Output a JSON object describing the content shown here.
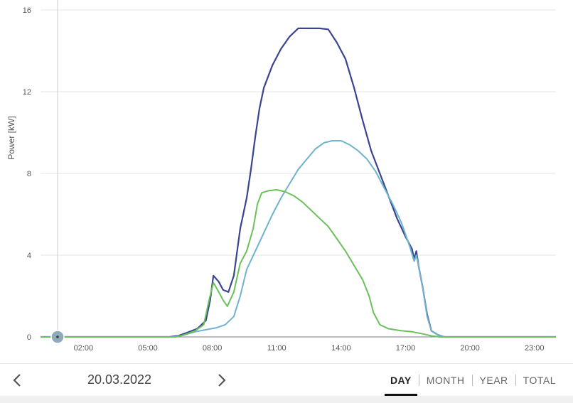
{
  "chart_data": {
    "type": "line",
    "title": "",
    "xlabel": "",
    "ylabel": "Power [kW]",
    "xlim": [
      0,
      24
    ],
    "ylim": [
      0,
      16
    ],
    "y_ticks": [
      0,
      4,
      8,
      12,
      16
    ],
    "x_ticks": [
      {
        "value": 2,
        "label": "02:00"
      },
      {
        "value": 5,
        "label": "05:00"
      },
      {
        "value": 8,
        "label": "08:00"
      },
      {
        "value": 11,
        "label": "11:00"
      },
      {
        "value": 14,
        "label": "14:00"
      },
      {
        "value": 17,
        "label": "17:00"
      },
      {
        "value": 20,
        "label": "20:00"
      },
      {
        "value": 23,
        "label": "23:00"
      }
    ],
    "grid": true,
    "cursor_x": 0,
    "series": [
      {
        "color": "#3a4590",
        "points": [
          [
            0,
            0
          ],
          [
            6.0,
            0
          ],
          [
            6.4,
            0.05
          ],
          [
            6.8,
            0.2
          ],
          [
            7.3,
            0.4
          ],
          [
            7.7,
            0.8
          ],
          [
            7.9,
            1.8
          ],
          [
            8.05,
            3.0
          ],
          [
            8.3,
            2.7
          ],
          [
            8.5,
            2.3
          ],
          [
            8.75,
            2.2
          ],
          [
            9.0,
            3.0
          ],
          [
            9.3,
            5.3
          ],
          [
            9.6,
            6.8
          ],
          [
            9.8,
            8.2
          ],
          [
            10.0,
            9.8
          ],
          [
            10.2,
            11.2
          ],
          [
            10.4,
            12.2
          ],
          [
            10.8,
            13.3
          ],
          [
            11.2,
            14.1
          ],
          [
            11.6,
            14.7
          ],
          [
            12.0,
            15.1
          ],
          [
            12.5,
            15.1
          ],
          [
            13.0,
            15.1
          ],
          [
            13.4,
            15.05
          ],
          [
            13.8,
            14.4
          ],
          [
            14.2,
            13.6
          ],
          [
            14.6,
            12.2
          ],
          [
            15.0,
            10.6
          ],
          [
            15.4,
            9.1
          ],
          [
            15.8,
            8.0
          ],
          [
            16.2,
            6.9
          ],
          [
            16.6,
            5.8
          ],
          [
            17.0,
            4.9
          ],
          [
            17.3,
            4.3
          ],
          [
            17.4,
            3.8
          ],
          [
            17.5,
            4.2
          ],
          [
            17.6,
            3.5
          ],
          [
            17.8,
            2.4
          ],
          [
            18.0,
            1.1
          ],
          [
            18.2,
            0.3
          ],
          [
            18.5,
            0.1
          ],
          [
            18.8,
            0
          ],
          [
            24,
            0
          ]
        ]
      },
      {
        "color": "#6fb3cf",
        "points": [
          [
            0,
            0
          ],
          [
            6.3,
            0
          ],
          [
            6.7,
            0.1
          ],
          [
            7.2,
            0.25
          ],
          [
            7.7,
            0.35
          ],
          [
            8.2,
            0.45
          ],
          [
            8.6,
            0.6
          ],
          [
            9.0,
            1.0
          ],
          [
            9.3,
            2.0
          ],
          [
            9.6,
            3.3
          ],
          [
            10.0,
            4.2
          ],
          [
            10.4,
            5.1
          ],
          [
            10.8,
            6.0
          ],
          [
            11.2,
            6.8
          ],
          [
            11.6,
            7.5
          ],
          [
            12.0,
            8.2
          ],
          [
            12.4,
            8.7
          ],
          [
            12.8,
            9.2
          ],
          [
            13.2,
            9.5
          ],
          [
            13.6,
            9.6
          ],
          [
            14.0,
            9.6
          ],
          [
            14.4,
            9.4
          ],
          [
            14.8,
            9.1
          ],
          [
            15.2,
            8.7
          ],
          [
            15.6,
            8.1
          ],
          [
            16.0,
            7.3
          ],
          [
            16.4,
            6.5
          ],
          [
            16.8,
            5.6
          ],
          [
            17.2,
            4.4
          ],
          [
            17.4,
            3.7
          ],
          [
            17.5,
            4.0
          ],
          [
            17.6,
            3.5
          ],
          [
            17.8,
            2.4
          ],
          [
            18.0,
            1.0
          ],
          [
            18.2,
            0.3
          ],
          [
            18.5,
            0.1
          ],
          [
            18.8,
            0
          ],
          [
            24,
            0
          ]
        ]
      },
      {
        "color": "#6cc05a",
        "points": [
          [
            0,
            0
          ],
          [
            6.3,
            0
          ],
          [
            6.7,
            0.1
          ],
          [
            7.2,
            0.3
          ],
          [
            7.6,
            0.6
          ],
          [
            7.85,
            1.8
          ],
          [
            8.05,
            2.65
          ],
          [
            8.3,
            2.2
          ],
          [
            8.5,
            1.8
          ],
          [
            8.7,
            1.5
          ],
          [
            9.0,
            2.2
          ],
          [
            9.3,
            3.6
          ],
          [
            9.6,
            4.2
          ],
          [
            9.9,
            5.3
          ],
          [
            10.1,
            6.5
          ],
          [
            10.3,
            7.05
          ],
          [
            10.6,
            7.15
          ],
          [
            11.0,
            7.2
          ],
          [
            11.4,
            7.1
          ],
          [
            11.8,
            6.9
          ],
          [
            12.2,
            6.6
          ],
          [
            12.6,
            6.2
          ],
          [
            13.0,
            5.8
          ],
          [
            13.4,
            5.4
          ],
          [
            13.8,
            4.8
          ],
          [
            14.2,
            4.2
          ],
          [
            14.6,
            3.5
          ],
          [
            15.0,
            2.8
          ],
          [
            15.3,
            2.0
          ],
          [
            15.5,
            1.2
          ],
          [
            15.8,
            0.6
          ],
          [
            16.2,
            0.4
          ],
          [
            16.8,
            0.3
          ],
          [
            17.3,
            0.25
          ],
          [
            17.8,
            0.15
          ],
          [
            18.2,
            0.05
          ],
          [
            18.6,
            0
          ],
          [
            24,
            0
          ]
        ]
      }
    ]
  },
  "date": "20.03.2022",
  "period_tabs": [
    {
      "label": "DAY",
      "active": true
    },
    {
      "label": "MONTH",
      "active": false
    },
    {
      "label": "YEAR",
      "active": false
    },
    {
      "label": "TOTAL",
      "active": false
    }
  ]
}
